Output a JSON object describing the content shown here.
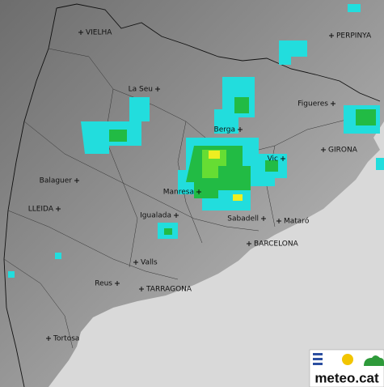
{
  "map": {
    "cities": [
      {
        "label": "VIELHA"
      },
      {
        "label": "PERPINYA"
      },
      {
        "label": "La Seu"
      },
      {
        "label": "Berga"
      },
      {
        "label": "Figueres"
      },
      {
        "label": "GIRONA"
      },
      {
        "label": "Balaguer"
      },
      {
        "label": "LLEIDA"
      },
      {
        "label": "Manresa"
      },
      {
        "label": "Vic"
      },
      {
        "label": "Igualada"
      },
      {
        "label": "Sabadell"
      },
      {
        "label": "Mataró"
      },
      {
        "label": "BARCELONA"
      },
      {
        "label": "Valls"
      },
      {
        "label": "Reus"
      },
      {
        "label": "TARRAGONA"
      },
      {
        "label": "Tortosa"
      }
    ]
  },
  "logo": {
    "text": "meteo.cat"
  }
}
